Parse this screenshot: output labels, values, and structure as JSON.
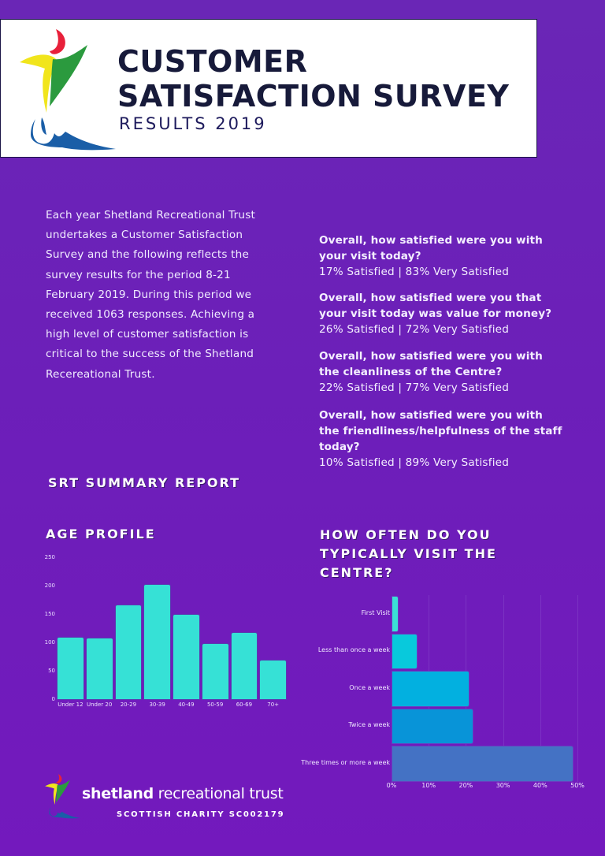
{
  "header": {
    "title_line1": "CUSTOMER",
    "title_line2": "SATISFACTION SURVEY",
    "subtitle": "RESULTS 2019",
    "logo_icon": "shetland-recreational-trust-logo"
  },
  "intro": {
    "text": "Each year Shetland Recreational Trust undertakes a Customer Satisfaction Survey and the following reflects the survey results for the period 8-21 February 2019. During this period we received 1063 responses. Achieving a high level of customer satisfaction is critical to the success of the Shetland Recereational Trust."
  },
  "questions": [
    {
      "q": "Overall, how satisfied were you with your visit today?",
      "a": "17% Satisfied | 83% Very Satisfied"
    },
    {
      "q": "Overall, how satisfied were you that your visit today was value for money?",
      "a": "26% Satisfied | 72% Very Satisfied"
    },
    {
      "q": "Overall, how satisfied were you with the cleanliness of the Centre?",
      "a": "22% Satisfied | 77% Very Satisfied"
    },
    {
      "q": "Overall, how satisfied were you with the friendliness/helpfulness of the staff today?",
      "a": "10% Satisfied | 89% Very Satisfied"
    }
  ],
  "sections": {
    "summary": "SRT SUMMARY REPORT",
    "age_profile": "AGE PROFILE",
    "visit_frequency": "HOW OFTEN DO YOU TYPICALLY VISIT THE CENTRE?"
  },
  "colors": {
    "background": "#6c1fb9",
    "title": "#171a3a",
    "age_bar": "#36e1d6",
    "visit_bars": [
      "#3be0d6",
      "#08c9dc",
      "#02b0e0",
      "#0894d8",
      "#4472c4"
    ]
  },
  "chart_data": [
    {
      "type": "bar",
      "title": "AGE PROFILE",
      "categories": [
        "Under 12",
        "Under 20",
        "20-29",
        "30-39",
        "40-49",
        "50-59",
        "60-69",
        "70+"
      ],
      "values": [
        111,
        110,
        168,
        204,
        151,
        100,
        119,
        71
      ],
      "yticks": [
        0,
        50,
        100,
        150,
        200,
        250
      ],
      "ylim": [
        0,
        250
      ],
      "xlabel": "",
      "ylabel": "",
      "grid": false,
      "legend": null
    },
    {
      "type": "bar",
      "orientation": "horizontal",
      "title": "HOW OFTEN DO YOU TYPICALLY VISIT THE CENTRE?",
      "categories": [
        "First Visit",
        "Less than once a week",
        "Once a week",
        "Twice a week",
        "Three times or more a week"
      ],
      "values": [
        2,
        7,
        21,
        22,
        49
      ],
      "unit": "%",
      "xticks": [
        "0%",
        "10%",
        "20%",
        "30%",
        "40%",
        "50%"
      ],
      "xlim": [
        0,
        50
      ],
      "grid": true,
      "legend": null
    }
  ],
  "footer": {
    "brand_bold": "shetland",
    "brand_light": " recreational trust",
    "charity": "SCOTTISH CHARITY SC002179"
  }
}
